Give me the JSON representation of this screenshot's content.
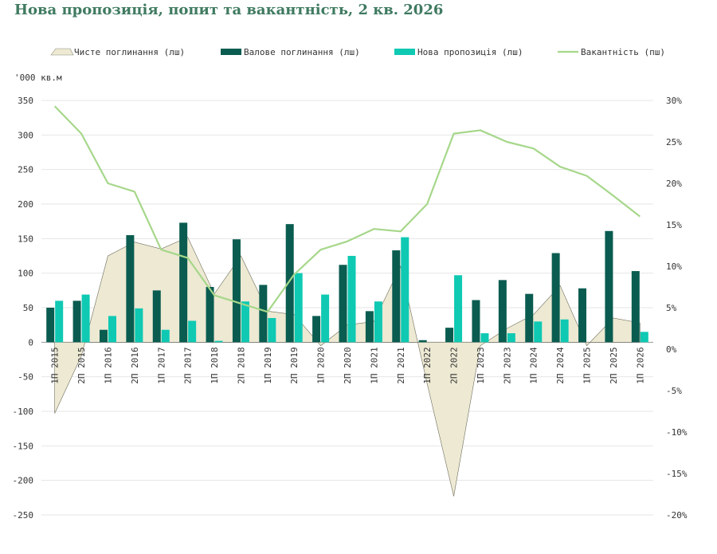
{
  "title": "Нова пропозиція, попит та вакантність, 2 кв. 2026",
  "chart_data": {
    "type": "bar",
    "title": "Нова пропозиція, попит та вакантність, 2 кв. 2026",
    "y_unit_label": "'000 кв.м",
    "categories": [
      "1П 2015",
      "2П 2015",
      "1П 2016",
      "2П 2016",
      "1П 2017",
      "2П 2017",
      "1П 2018",
      "2П 2018",
      "1П 2019",
      "2П 2019",
      "1П 2020",
      "2П 2020",
      "1П 2021",
      "2П 2021",
      "1П 2022",
      "2П 2022",
      "1П 2023",
      "2П 2023",
      "1П 2024",
      "2П 2024",
      "1П 2025",
      "2П 2025",
      "1П 2026"
    ],
    "ylim": [
      -250,
      350
    ],
    "y_ticks": [
      "350",
      "300",
      "250",
      "200",
      "150",
      "100",
      "50",
      "0",
      "-50",
      "-100",
      "-150",
      "-200",
      "-250"
    ],
    "y2lim": [
      -20,
      30
    ],
    "y2_ticks": [
      "30%",
      "25%",
      "20%",
      "15%",
      "10%",
      "5%",
      "0%",
      "-5%",
      "-10%",
      "-15%",
      "-20%"
    ],
    "legend_position": "top",
    "grid": true,
    "series": [
      {
        "name": "Чисте поглинання (лш)",
        "type": "area",
        "axis": "left",
        "color": "#ede9d3",
        "values": [
          -103,
          -20,
          125,
          145,
          135,
          152,
          70,
          125,
          45,
          40,
          -5,
          25,
          30,
          110,
          -60,
          -223,
          -5,
          20,
          40,
          82,
          -5,
          35,
          28
        ]
      },
      {
        "name": "Валове поглинання (лш)",
        "type": "bar",
        "axis": "left",
        "color": "#0a5c50",
        "values": [
          50,
          60,
          18,
          155,
          75,
          173,
          80,
          149,
          83,
          171,
          38,
          112,
          45,
          133,
          3,
          21,
          61,
          90,
          70,
          129,
          78,
          161,
          103
        ]
      },
      {
        "name": "Нова пропозиція (лш)",
        "type": "bar",
        "axis": "left",
        "color": "#0fc9b3",
        "values": [
          60,
          69,
          38,
          49,
          18,
          31,
          2,
          59,
          35,
          100,
          69,
          125,
          59,
          152,
          0,
          97,
          13,
          13,
          30,
          33,
          0,
          0,
          15
        ]
      },
      {
        "name": "Вакантність (пш)",
        "type": "line",
        "axis": "right",
        "color": "#a6d78a",
        "values": [
          29.3,
          26,
          20,
          19,
          12,
          11,
          6.5,
          5.5,
          4.5,
          9,
          12,
          13,
          14.5,
          14.2,
          17.5,
          26,
          26.4,
          25,
          24.2,
          22,
          20.9,
          18.5,
          16
        ]
      }
    ]
  }
}
